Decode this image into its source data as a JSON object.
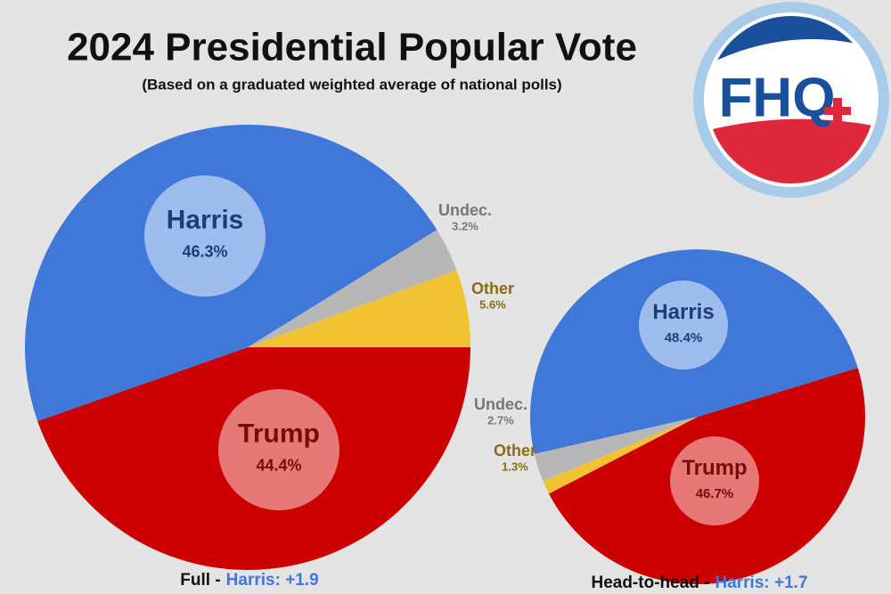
{
  "title": "2024 Presidential Popular Vote",
  "subtitle": "(Based on a graduated weighted average of national polls)",
  "logo_text": "FHQ",
  "chart_data": [
    {
      "type": "pie",
      "caption": "Full -",
      "caption_highlight": "Harris: +1.9",
      "categories": [
        "Trump",
        "Harris",
        "Undec.",
        "Other"
      ],
      "values": [
        44.4,
        46.3,
        3.2,
        5.6
      ],
      "value_labels": [
        "44.4%",
        "46.3%",
        "3.2%",
        "5.6%"
      ],
      "colors": [
        "#cc0000",
        "#3f78d8",
        "#b7b7b7",
        "#f1c232"
      ]
    },
    {
      "type": "pie",
      "caption": "Head-to-head -",
      "caption_highlight": "Harris: +1.7",
      "categories": [
        "Trump",
        "Other",
        "Undec.",
        "Harris"
      ],
      "values": [
        46.7,
        1.3,
        2.7,
        48.4
      ],
      "value_labels": [
        "46.7%",
        "1.3%",
        "2.7%",
        "48.4%"
      ],
      "colors": [
        "#cc0000",
        "#f1c232",
        "#b7b7b7",
        "#3f78d8"
      ]
    }
  ]
}
